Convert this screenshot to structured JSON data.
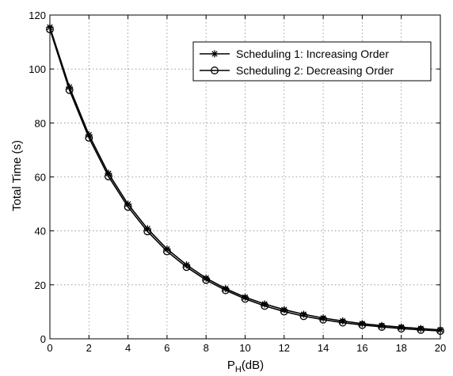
{
  "chart_data": {
    "type": "line",
    "title": "",
    "xlabel_main": "P",
    "xlabel_sub": "H",
    "xlabel_tail": "(dB)",
    "ylabel": "Total Time (s)",
    "xlim": [
      0,
      20
    ],
    "ylim": [
      0,
      120
    ],
    "xticks": [
      "0",
      "2",
      "4",
      "6",
      "8",
      "10",
      "12",
      "14",
      "16",
      "18",
      "20"
    ],
    "yticks": [
      "0",
      "20",
      "40",
      "60",
      "80",
      "100",
      "120"
    ],
    "grid": true,
    "legend_position": "top-right",
    "x": [
      0,
      1,
      2,
      3,
      4,
      5,
      6,
      7,
      8,
      9,
      10,
      11,
      12,
      13,
      14,
      15,
      16,
      17,
      18,
      19,
      20
    ],
    "series": [
      {
        "name": "Scheduling 1: Increasing Order",
        "marker": "star",
        "values": [
          115.5,
          93.3,
          75.6,
          61.3,
          49.9,
          40.8,
          33.3,
          27.4,
          22.5,
          18.6,
          15.4,
          12.9,
          10.8,
          9.1,
          7.7,
          6.6,
          5.6,
          4.9,
          4.3,
          3.8,
          3.3
        ]
      },
      {
        "name": "Scheduling 2: Decreasing Order",
        "marker": "circle",
        "values": [
          114.7,
          92.2,
          74.5,
          60.2,
          48.9,
          39.8,
          32.4,
          26.6,
          21.8,
          18.0,
          14.8,
          12.2,
          10.1,
          8.4,
          7.1,
          6.0,
          5.1,
          4.4,
          3.8,
          3.3,
          2.9
        ]
      }
    ]
  }
}
